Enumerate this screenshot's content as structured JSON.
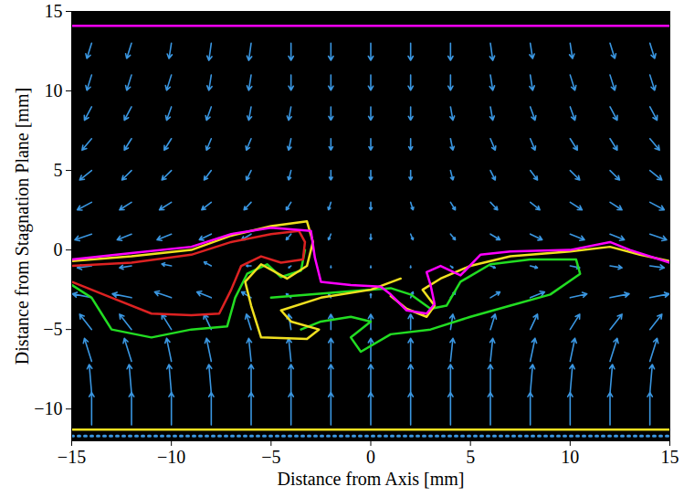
{
  "chart_data": {
    "type": "vector_field",
    "x_label": "Distance from Axis [mm]",
    "y_label": "Distance from Stagnation Plane [mm]",
    "xlim": [
      -15,
      15
    ],
    "ylim": [
      -12,
      15
    ],
    "xticks": [
      -15,
      -10,
      -5,
      0,
      5,
      10,
      15
    ],
    "yticks": [
      -10,
      -5,
      0,
      5,
      10,
      15
    ],
    "vectors": {
      "color": "#3a96e0",
      "x": [
        -14,
        -12,
        -10,
        -8,
        -6,
        -4,
        -2,
        0,
        2,
        4,
        6,
        8,
        10,
        12,
        14
      ],
      "y": [
        13,
        11,
        9,
        7,
        5,
        3,
        1,
        -1,
        -3,
        -5,
        -7,
        -9,
        -11
      ],
      "u": [
        [
          -0.2,
          -0.2,
          -0.1,
          -0.1,
          -0.1,
          0,
          0,
          0,
          0,
          0,
          0.1,
          0.1,
          0.1,
          0.2,
          0.2
        ],
        [
          -0.2,
          -0.2,
          -0.2,
          -0.1,
          -0.1,
          0,
          0,
          0,
          0,
          0,
          0.1,
          0.1,
          0.2,
          0.2,
          0.2
        ],
        [
          -0.3,
          -0.3,
          -0.2,
          -0.2,
          -0.1,
          -0.1,
          0,
          0,
          0,
          0.1,
          0.1,
          0.2,
          0.2,
          0.3,
          0.3
        ],
        [
          -0.4,
          -0.3,
          -0.3,
          -0.2,
          -0.2,
          -0.1,
          0,
          0,
          0,
          0.1,
          0.2,
          0.2,
          0.3,
          0.3,
          0.4
        ],
        [
          -0.5,
          -0.4,
          -0.4,
          -0.3,
          -0.2,
          -0.1,
          0,
          0,
          0,
          0.1,
          0.2,
          0.3,
          0.4,
          0.4,
          0.5
        ],
        [
          -0.6,
          -0.5,
          -0.5,
          -0.4,
          -0.3,
          -0.2,
          -0.1,
          0,
          0.1,
          0.2,
          0.3,
          0.4,
          0.5,
          0.5,
          0.6
        ],
        [
          -0.7,
          -0.6,
          -0.6,
          -0.5,
          -0.4,
          -0.2,
          -0.1,
          0,
          0.1,
          0.2,
          0.4,
          0.5,
          0.6,
          0.6,
          0.7
        ],
        [
          -0.6,
          -0.5,
          -0.4,
          -0.3,
          -0.2,
          -0.1,
          0,
          0,
          0,
          0.1,
          0.2,
          0.3,
          0.4,
          0.5,
          0.6
        ],
        [
          -0.8,
          -0.8,
          -0.7,
          -0.6,
          -0.4,
          -0.2,
          -0.1,
          0,
          0.1,
          0.2,
          0.4,
          0.6,
          0.7,
          0.8,
          0.8
        ],
        [
          -0.5,
          -0.5,
          -0.4,
          -0.3,
          -0.2,
          -0.1,
          0,
          0,
          0,
          0.1,
          0.2,
          0.3,
          0.4,
          0.5,
          0.5
        ],
        [
          -0.3,
          -0.3,
          -0.2,
          -0.2,
          -0.1,
          -0.1,
          0,
          0,
          0,
          0.1,
          0.1,
          0.2,
          0.2,
          0.3,
          0.3
        ],
        [
          -0.1,
          -0.1,
          -0.1,
          -0.1,
          0,
          0,
          0,
          0,
          0,
          0,
          0,
          0.1,
          0.1,
          0.1,
          0.1
        ],
        [
          0,
          0,
          0,
          0,
          0,
          0,
          0,
          0,
          0,
          0,
          0,
          0,
          0,
          0,
          0
        ]
      ],
      "v": [
        [
          -0.8,
          -0.8,
          -0.8,
          -0.9,
          -0.9,
          -0.9,
          -0.9,
          -0.9,
          -0.9,
          -0.9,
          -0.9,
          -0.8,
          -0.8,
          -0.8,
          -0.8
        ],
        [
          -0.8,
          -0.8,
          -0.8,
          -0.8,
          -0.8,
          -0.8,
          -0.8,
          -0.8,
          -0.8,
          -0.8,
          -0.8,
          -0.8,
          -0.8,
          -0.8,
          -0.8
        ],
        [
          -0.7,
          -0.7,
          -0.7,
          -0.7,
          -0.7,
          -0.7,
          -0.7,
          -0.7,
          -0.7,
          -0.7,
          -0.7,
          -0.7,
          -0.7,
          -0.7,
          -0.7
        ],
        [
          -0.6,
          -0.6,
          -0.6,
          -0.6,
          -0.6,
          -0.6,
          -0.6,
          -0.6,
          -0.6,
          -0.6,
          -0.6,
          -0.6,
          -0.6,
          -0.6,
          -0.6
        ],
        [
          -0.5,
          -0.5,
          -0.5,
          -0.5,
          -0.5,
          -0.5,
          -0.5,
          -0.5,
          -0.5,
          -0.5,
          -0.5,
          -0.5,
          -0.5,
          -0.5,
          -0.5
        ],
        [
          -0.4,
          -0.4,
          -0.4,
          -0.4,
          -0.4,
          -0.4,
          -0.4,
          -0.4,
          -0.4,
          -0.4,
          -0.4,
          -0.4,
          -0.4,
          -0.4,
          -0.4
        ],
        [
          -0.3,
          -0.3,
          -0.3,
          -0.3,
          -0.3,
          -0.3,
          -0.3,
          -0.3,
          -0.3,
          -0.3,
          -0.3,
          -0.3,
          -0.3,
          -0.3,
          -0.3
        ],
        [
          -0.1,
          -0.1,
          0.1,
          0.2,
          0,
          -0.1,
          -0.1,
          -0.1,
          -0.1,
          -0.1,
          -0.1,
          -0.1,
          -0.1,
          -0.1,
          -0.1
        ],
        [
          0.2,
          0.2,
          0.3,
          0.3,
          0.3,
          0.2,
          0.2,
          0.2,
          0.3,
          0.3,
          0.3,
          0.3,
          0.2,
          0.2,
          0.2
        ],
        [
          0.8,
          0.8,
          0.8,
          0.8,
          0.8,
          0.8,
          0.8,
          0.8,
          0.8,
          0.8,
          0.8,
          0.8,
          0.8,
          0.8,
          0.8
        ],
        [
          1.2,
          1.2,
          1.2,
          1.2,
          1.2,
          1.2,
          1.2,
          1.2,
          1.2,
          1.2,
          1.2,
          1.2,
          1.2,
          1.2,
          1.2
        ],
        [
          1.5,
          1.5,
          1.5,
          1.5,
          1.5,
          1.5,
          1.5,
          1.5,
          1.5,
          1.5,
          1.5,
          1.5,
          1.5,
          1.5,
          1.5
        ],
        [
          1.7,
          1.7,
          1.7,
          1.7,
          1.7,
          1.7,
          1.7,
          1.7,
          1.7,
          1.7,
          1.7,
          1.7,
          1.7,
          1.7,
          1.7
        ]
      ]
    },
    "series": [
      {
        "color": "#ff00ff",
        "line_style": "solid",
        "x": [
          -15,
          15
        ],
        "y": [
          14.1,
          14.1
        ]
      },
      {
        "color": "#f0e020",
        "line_style": "solid",
        "x": [
          -15,
          15
        ],
        "y": [
          -11.3,
          -11.3
        ]
      },
      {
        "color": "#3a96e0",
        "line_style": "dotted",
        "x": [
          -15,
          15
        ],
        "y": [
          -11.7,
          -11.7
        ]
      },
      {
        "color": "#22dd22",
        "line_style": "solid",
        "x": [
          -15,
          -14,
          -13.5,
          -13,
          -11,
          -9,
          -7.2,
          -6.8,
          -6.2,
          -5.2,
          -4.5,
          -3.5,
          -3.3
        ],
        "y": [
          -2.2,
          -3,
          -4,
          -5,
          -5.5,
          -5,
          -4.8,
          -3,
          -1.5,
          -0.9,
          -1.7,
          -1.3,
          0
        ]
      },
      {
        "color": "#22dd22",
        "line_style": "solid",
        "x": [
          -5,
          -3,
          -1,
          1,
          2,
          3,
          3.8,
          4.5,
          6,
          8,
          10.3,
          10.5,
          9,
          7,
          5,
          3,
          1,
          -0.5,
          -1,
          0,
          -1,
          -2.5,
          -3.5
        ],
        "y": [
          -3,
          -2.8,
          -2.6,
          -2.4,
          -2.8,
          -3.7,
          -3.5,
          -2,
          -0.9,
          -0.6,
          -0.6,
          -1.5,
          -2.8,
          -3.5,
          -4.2,
          -5,
          -5.3,
          -6.4,
          -5.5,
          -4.5,
          -4.2,
          -4.5,
          -5
        ]
      },
      {
        "color": "#f0e020",
        "line_style": "solid",
        "x": [
          -15,
          -12,
          -9,
          -7,
          -5,
          -3.2,
          -2.9,
          -3.2,
          -4.2,
          -5.5,
          -6.3,
          -6,
          -5.5,
          -3.2,
          -2.6,
          -4,
          -4.5,
          -2.5,
          0,
          1.5
        ],
        "y": [
          -0.7,
          -0.4,
          0,
          0.9,
          1.5,
          1.8,
          0.5,
          -1,
          -1.8,
          -0.9,
          -2,
          -3.5,
          -5.5,
          -5.6,
          -5,
          -4.5,
          -3.8,
          -3,
          -2.5,
          -1.8
        ]
      },
      {
        "color": "#f0e020",
        "line_style": "solid",
        "x": [
          1,
          1.8,
          2.8,
          3.2,
          2.6,
          3.5,
          5,
          7,
          10,
          12,
          13.5,
          15
        ],
        "y": [
          -2.9,
          -3.7,
          -4.2,
          -3.5,
          -2.5,
          -1.8,
          -1,
          -0.4,
          -0.1,
          0.2,
          -0.3,
          -0.7
        ]
      },
      {
        "color": "#dd2222",
        "line_style": "solid",
        "x": [
          -15,
          -12,
          -9,
          -7,
          -5,
          -3.6,
          -3.3,
          -3.4,
          -4.5,
          -5.5,
          -6.5,
          -7,
          -7.6,
          -9,
          -11,
          -13,
          -15
        ],
        "y": [
          -1,
          -0.8,
          -0.3,
          0.5,
          1,
          1.2,
          0.5,
          -0.6,
          -0.8,
          -0.4,
          -1,
          -2.5,
          -4,
          -4.1,
          -4,
          -3,
          -2
        ]
      },
      {
        "color": "#ff00ff",
        "line_style": "solid",
        "x": [
          -15,
          -12,
          -9,
          -7,
          -5,
          -3,
          -2.8,
          -2.5,
          -1,
          0.5,
          1,
          1.8,
          2.8,
          3.2,
          3,
          2.8,
          3.5,
          4.5,
          5.5,
          7,
          10,
          12,
          13,
          15
        ],
        "y": [
          -0.6,
          -0.2,
          0.2,
          1,
          1.4,
          1.2,
          -0.5,
          -2,
          -2.2,
          -2.3,
          -2.8,
          -3.8,
          -4,
          -3.4,
          -2.2,
          -1.4,
          -1,
          -1.6,
          -0.3,
          -0.1,
          0,
          0.5,
          0,
          -0.8
        ]
      }
    ]
  }
}
